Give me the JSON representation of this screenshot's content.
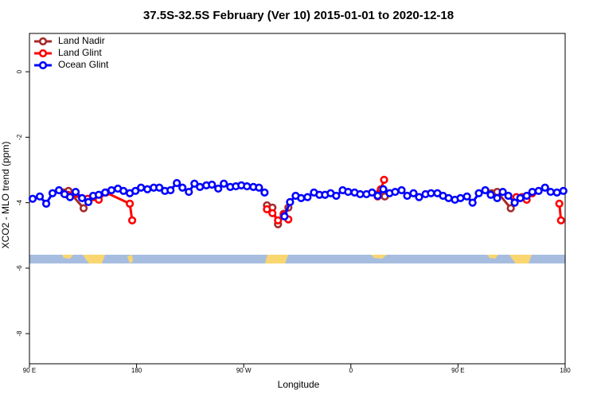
{
  "chart_data": {
    "type": "line",
    "title": "37.5S-32.5S February (Ver 10)   2015-01-01 to 2020-12-18",
    "x_label": "Longitude",
    "y_label": "XCO2 - MLO trend (ppm)",
    "xlim": [
      90,
      540
    ],
    "ylim": [
      -8.92,
      1.17
    ],
    "xticks": [
      {
        "value": 90,
        "label": "90 E"
      },
      {
        "value": 180,
        "label": "180"
      },
      {
        "value": 270,
        "label": "90 W"
      },
      {
        "value": 360,
        "label": "0"
      },
      {
        "value": 450,
        "label": "90 E"
      },
      {
        "value": 540,
        "label": "180"
      }
    ],
    "yticks": [
      0,
      -2,
      -4,
      -6,
      -8
    ],
    "legend": "top-left",
    "series": [
      {
        "name": "Land Nadir",
        "color": "#a52a2a",
        "x": [
          118.8,
          122.8,
          135.5,
          212,
          289.5,
          294.1,
          298.8,
          303.5,
          307.5,
          345,
          383.8,
          388.5,
          430,
          478.2,
          482.9,
          494.3
        ],
        "values": [
          -3.69,
          -3.64,
          -4.17,
          null,
          -4.08,
          -4.15,
          -4.66,
          -4.34,
          -4.15,
          null,
          -3.71,
          -3.81,
          null,
          -3.71,
          -3.67,
          -4.17
        ]
      },
      {
        "name": "Land Glint",
        "color": "#ff0000",
        "x": [
          122.1,
          138.9,
          143.5,
          148.2,
          154.3,
          174.3,
          176.3,
          230,
          289.5,
          294.1,
          298.8,
          303.5,
          307.5,
          345,
          382.5,
          385.2,
          387.9,
          440,
          499,
          503.7,
          507.7,
          512.4,
          520,
          535.1,
          536.5
        ],
        "values": [
          -3.76,
          -3.88,
          -3.83,
          -3.91,
          -3.69,
          -4.03,
          -4.54,
          null,
          -4.2,
          -4.32,
          -4.54,
          -4.37,
          -4.51,
          null,
          -3.81,
          -3.59,
          -3.3,
          null,
          -3.83,
          -3.83,
          -3.91,
          -3.71,
          null,
          -4.03,
          -4.54
        ]
      },
      {
        "name": "Ocean Glint",
        "color": "#0000ff",
        "x": [
          92.7,
          98.7,
          104.1,
          109.4,
          114.8,
          119.5,
          124.1,
          128.8,
          134.2,
          139.5,
          143.5,
          148.2,
          153.6,
          158.9,
          164.3,
          169.0,
          174.3,
          179.0,
          183.7,
          189.1,
          194.4,
          199.1,
          203.8,
          208.5,
          213.8,
          218.5,
          223.9,
          228.6,
          233.2,
          238.6,
          243.3,
          248.6,
          253.3,
          258.7,
          263.4,
          268.0,
          272.7,
          278.1,
          282.8,
          287.5,
          296,
          304.2,
          308.9,
          313.6,
          318.2,
          323.6,
          329.0,
          333.6,
          338.3,
          343.0,
          347.7,
          353.1,
          357.7,
          363.1,
          367.8,
          373.1,
          377.8,
          382.5,
          387.2,
          392.5,
          397.2,
          402.6,
          407.3,
          412.6,
          417.3,
          422.7,
          427.3,
          432.7,
          437.4,
          442.1,
          447.4,
          452.1,
          457.5,
          462.2,
          467.5,
          472.9,
          477.5,
          482.9,
          487.6,
          492.3,
          497.6,
          502.3,
          507.7,
          512.4,
          517.7,
          523.1,
          527.8,
          533.1,
          538.5
        ],
        "values": [
          -3.88,
          -3.81,
          -4.03,
          -3.71,
          -3.62,
          -3.74,
          -3.83,
          -3.67,
          -3.86,
          -3.98,
          -3.79,
          -3.76,
          -3.69,
          -3.62,
          -3.57,
          -3.64,
          -3.71,
          -3.64,
          -3.54,
          -3.59,
          -3.54,
          -3.54,
          -3.64,
          -3.62,
          -3.4,
          -3.54,
          -3.67,
          -3.42,
          -3.52,
          -3.47,
          -3.45,
          -3.57,
          -3.42,
          -3.52,
          -3.5,
          -3.47,
          -3.5,
          -3.52,
          -3.54,
          -3.69,
          null,
          -4.42,
          -3.98,
          -3.79,
          -3.86,
          -3.83,
          -3.69,
          -3.76,
          -3.76,
          -3.71,
          -3.79,
          -3.62,
          -3.67,
          -3.69,
          -3.74,
          -3.74,
          -3.69,
          -3.79,
          -3.59,
          -3.71,
          -3.67,
          -3.62,
          -3.79,
          -3.71,
          -3.83,
          -3.74,
          -3.71,
          -3.71,
          -3.79,
          -3.86,
          -3.91,
          -3.86,
          -3.81,
          -4.0,
          -3.71,
          -3.62,
          -3.76,
          -3.86,
          -3.67,
          -3.79,
          -4.0,
          -3.86,
          -3.79,
          -3.67,
          -3.64,
          -3.54,
          -3.67,
          -3.69,
          -3.64
        ]
      }
    ]
  }
}
